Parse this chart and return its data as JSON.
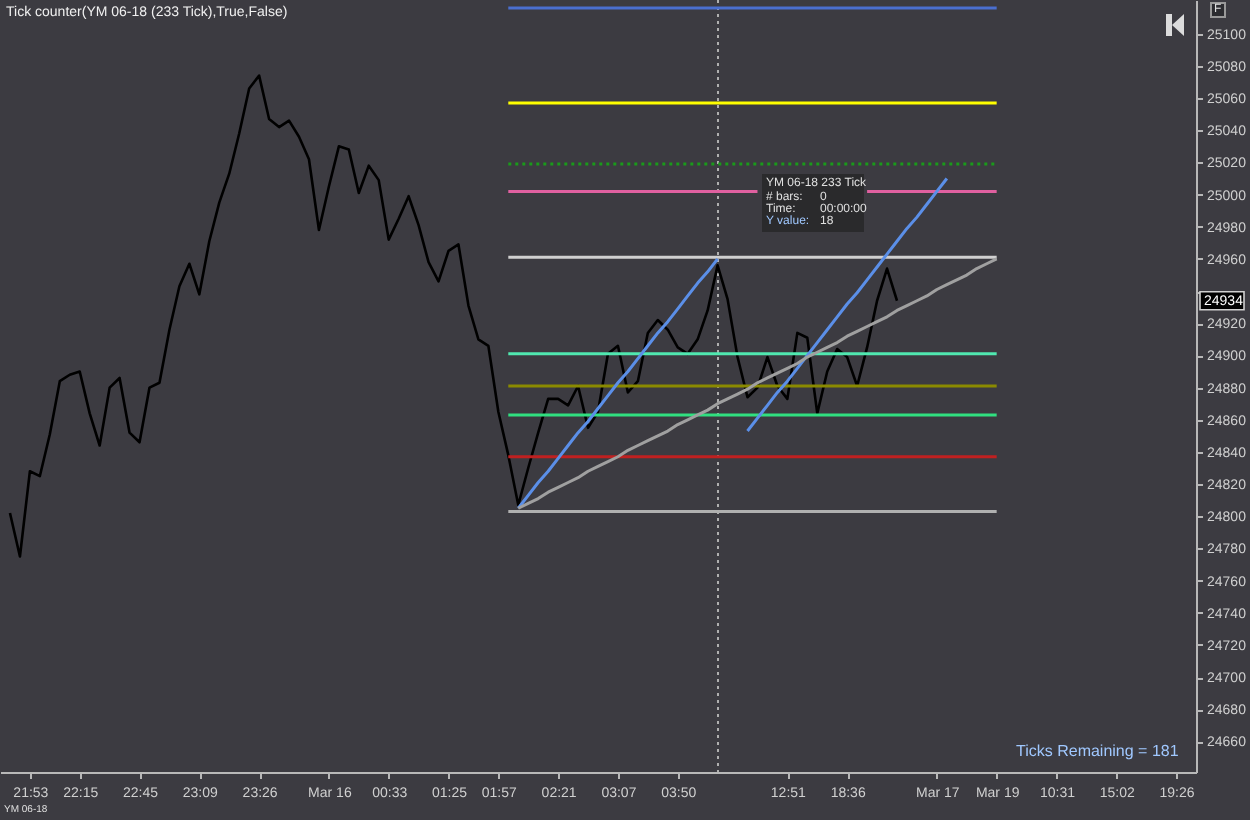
{
  "chart_data": {
    "type": "line",
    "title": "Tick counter(YM 06-18 (233 Tick),True,False)",
    "categories": [
      null,
      null,
      null,
      "21:53",
      null,
      null,
      null,
      null,
      "22:15",
      null,
      null,
      null,
      null,
      null,
      "22:45",
      null,
      null,
      null,
      null,
      null,
      "23:09",
      null,
      null,
      null,
      null,
      null,
      "23:26",
      null,
      null,
      null,
      null,
      null,
      null,
      "Mar 16",
      null,
      null,
      null,
      null,
      null,
      "00:33",
      null,
      null,
      null,
      null,
      null,
      "01:25",
      null,
      null,
      null,
      null,
      "01:57",
      null,
      null,
      null,
      null,
      null,
      "02:21",
      null,
      null,
      null,
      null,
      null,
      "03:07",
      null,
      null,
      null,
      null,
      null,
      "03:50",
      null,
      null,
      null,
      null,
      null,
      null,
      null,
      null,
      null,
      null,
      "12:51",
      null,
      null,
      null,
      null,
      null,
      "18:36",
      null,
      null,
      null,
      null,
      null,
      null,
      null,
      null,
      "Mar 17",
      null,
      null,
      null,
      null,
      null,
      "Mar 19",
      null,
      null,
      null,
      null,
      null,
      "10:31",
      null,
      null,
      null,
      null,
      null,
      "15:02",
      null,
      null,
      null,
      null,
      null,
      "19:26",
      null,
      null
    ],
    "ylim": [
      24641,
      25121
    ],
    "yticks": [
      24660,
      24680,
      24700,
      24720,
      24740,
      24760,
      24780,
      24800,
      24820,
      24840,
      24860,
      24880,
      24900,
      24920,
      {
        "value": 24940,
        "label": null
      },
      24960,
      24980,
      25000,
      25020,
      25040,
      25060,
      25080,
      25100
    ],
    "series": [
      {
        "color": "#000000",
        "values": [
          null,
          24802,
          24775,
          24828,
          24825,
          24851,
          24884,
          24888,
          24890,
          24864,
          24844,
          24880,
          24886,
          24852,
          24846,
          24880,
          24883,
          24916,
          24943,
          24957,
          24938,
          24971,
          24995,
          25013,
          25038,
          25066,
          25074,
          25047,
          25042,
          25046,
          25036,
          25022,
          24978,
          25005,
          25030,
          25028,
          25001,
          25018,
          25009,
          24972,
          24985,
          24999,
          24981,
          24958,
          24946,
          24965,
          24969,
          24931,
          24910,
          24906,
          24865,
          24838,
          24807,
          24830,
          24852,
          24873,
          24873,
          24869,
          24881,
          24855,
          24865,
          24901,
          24906,
          24877,
          24884,
          24914,
          24922,
          24916,
          24905,
          24901,
          24910,
          24928,
          24956,
          24935,
          24899,
          24874,
          24880,
          24899,
          24881,
          24873,
          24914,
          24911,
          24864,
          24890,
          24904,
          24899,
          24881,
          24905,
          24934,
          24954,
          24934,
          null,
          null,
          null,
          null,
          null,
          null,
          null,
          null,
          null,
          null,
          null,
          null,
          null,
          null,
          null,
          null,
          null,
          null,
          null,
          null,
          null,
          null,
          null,
          null,
          null,
          null,
          null,
          null,
          null,
          null
        ]
      },
      {
        "color": "#4a6fd0",
        "values": [
          null,
          null,
          null,
          null,
          null,
          null,
          null,
          null,
          null,
          null,
          null,
          null,
          null,
          null,
          null,
          null,
          null,
          null,
          null,
          null,
          null,
          null,
          null,
          null,
          null,
          null,
          null,
          null,
          null,
          null,
          null,
          null,
          null,
          null,
          null,
          null,
          null,
          null,
          null,
          null,
          null,
          null,
          null,
          null,
          null,
          null,
          null,
          null,
          null,
          null,
          null,
          25116,
          25116,
          25116,
          25116,
          25116,
          25116,
          25116,
          25116,
          25116,
          25116,
          25116,
          25116,
          25116,
          25116,
          25116,
          25116,
          25116,
          25116,
          25116,
          25116,
          25116,
          25116,
          25116,
          25116,
          25116,
          25116,
          25116,
          25116,
          25116,
          25116,
          25116,
          25116,
          25116,
          25116,
          25116,
          25116,
          25116,
          25116,
          25116,
          25116,
          25116,
          25116,
          25116,
          25116,
          25116,
          25116,
          25116,
          25116,
          25116,
          25116,
          null,
          null,
          null,
          null,
          null,
          null,
          null,
          null,
          null,
          null,
          null,
          null,
          null,
          null,
          null,
          null,
          null,
          null,
          null,
          null
        ]
      },
      {
        "color": "#ffff00",
        "values": [
          null,
          null,
          null,
          null,
          null,
          null,
          null,
          null,
          null,
          null,
          null,
          null,
          null,
          null,
          null,
          null,
          null,
          null,
          null,
          null,
          null,
          null,
          null,
          null,
          null,
          null,
          null,
          null,
          null,
          null,
          null,
          null,
          null,
          null,
          null,
          null,
          null,
          null,
          null,
          null,
          null,
          null,
          null,
          null,
          null,
          null,
          null,
          null,
          null,
          null,
          null,
          25057,
          25057,
          25057,
          25057,
          25057,
          25057,
          25057,
          25057,
          25057,
          25057,
          25057,
          25057,
          25057,
          25057,
          25057,
          25057,
          25057,
          25057,
          25057,
          25057,
          25057,
          25057,
          25057,
          25057,
          25057,
          25057,
          25057,
          25057,
          25057,
          25057,
          25057,
          25057,
          25057,
          25057,
          25057,
          25057,
          25057,
          25057,
          25057,
          25057,
          25057,
          25057,
          25057,
          25057,
          25057,
          25057,
          25057,
          25057,
          25057,
          25057,
          null,
          null,
          null,
          null,
          null,
          null,
          null,
          null,
          null,
          null,
          null,
          null,
          null,
          null,
          null,
          null,
          null,
          null,
          null,
          null
        ]
      },
      {
        "color": "#1a9a1a",
        "line_style": "dotted",
        "values": [
          null,
          null,
          null,
          null,
          null,
          null,
          null,
          null,
          null,
          null,
          null,
          null,
          null,
          null,
          null,
          null,
          null,
          null,
          null,
          null,
          null,
          null,
          null,
          null,
          null,
          null,
          null,
          null,
          null,
          null,
          null,
          null,
          null,
          null,
          null,
          null,
          null,
          null,
          null,
          null,
          null,
          null,
          null,
          null,
          null,
          null,
          null,
          null,
          null,
          null,
          null,
          25019,
          25019,
          25019,
          25019,
          25019,
          25019,
          25019,
          25019,
          25019,
          25019,
          25019,
          25019,
          25019,
          25019,
          25019,
          25019,
          25019,
          25019,
          25019,
          25019,
          25019,
          25019,
          25019,
          25019,
          25019,
          25019,
          25019,
          25019,
          25019,
          25019,
          25019,
          25019,
          25019,
          25019,
          25019,
          25019,
          25019,
          25019,
          25019,
          25019,
          25019,
          25019,
          25019,
          25019,
          25019,
          25019,
          25019,
          25019,
          25019,
          25019,
          null,
          null,
          null,
          null,
          null,
          null,
          null,
          null,
          null,
          null,
          null,
          null,
          null,
          null,
          null,
          null,
          null,
          null,
          null,
          null
        ]
      },
      {
        "color": "#e060a0",
        "values": [
          null,
          null,
          null,
          null,
          null,
          null,
          null,
          null,
          null,
          null,
          null,
          null,
          null,
          null,
          null,
          null,
          null,
          null,
          null,
          null,
          null,
          null,
          null,
          null,
          null,
          null,
          null,
          null,
          null,
          null,
          null,
          null,
          null,
          null,
          null,
          null,
          null,
          null,
          null,
          null,
          null,
          null,
          null,
          null,
          null,
          null,
          null,
          null,
          null,
          null,
          null,
          25002,
          25002,
          25002,
          25002,
          25002,
          25002,
          25002,
          25002,
          25002,
          25002,
          25002,
          25002,
          25002,
          25002,
          25002,
          25002,
          25002,
          25002,
          25002,
          25002,
          25002,
          25002,
          25002,
          25002,
          25002,
          25002,
          null,
          null,
          null,
          null,
          null,
          null,
          null,
          null,
          null,
          null,
          25002,
          25002,
          25002,
          25002,
          25002,
          25002,
          25002,
          25002,
          25002,
          25002,
          25002,
          25002,
          25002,
          25002,
          null,
          null,
          null,
          null,
          null,
          null,
          null,
          null,
          null,
          null,
          null,
          null,
          null,
          null,
          null,
          null,
          null,
          null,
          null,
          null
        ]
      },
      {
        "color": "#d0d0d0",
        "values": [
          null,
          null,
          null,
          null,
          null,
          null,
          null,
          null,
          null,
          null,
          null,
          null,
          null,
          null,
          null,
          null,
          null,
          null,
          null,
          null,
          null,
          null,
          null,
          null,
          null,
          null,
          null,
          null,
          null,
          null,
          null,
          null,
          null,
          null,
          null,
          null,
          null,
          null,
          null,
          null,
          null,
          null,
          null,
          null,
          null,
          null,
          null,
          null,
          null,
          null,
          null,
          24961,
          24961,
          24961,
          24961,
          24961,
          24961,
          24961,
          24961,
          24961,
          24961,
          24961,
          24961,
          24961,
          24961,
          24961,
          24961,
          24961,
          24961,
          24961,
          24961,
          24961,
          24961,
          24961,
          24961,
          24961,
          24961,
          24961,
          24961,
          24961,
          24961,
          24961,
          24961,
          24961,
          24961,
          24961,
          24961,
          24961,
          24961,
          24961,
          24961,
          24961,
          24961,
          24961,
          24961,
          24961,
          24961,
          24961,
          24961,
          24961,
          24961,
          null,
          null,
          null,
          null,
          null,
          null,
          null,
          null,
          null,
          null,
          null,
          null,
          null,
          null,
          null,
          null,
          null,
          null,
          null,
          null
        ]
      },
      {
        "color": "#50e8b0",
        "values": [
          null,
          null,
          null,
          null,
          null,
          null,
          null,
          null,
          null,
          null,
          null,
          null,
          null,
          null,
          null,
          null,
          null,
          null,
          null,
          null,
          null,
          null,
          null,
          null,
          null,
          null,
          null,
          null,
          null,
          null,
          null,
          null,
          null,
          null,
          null,
          null,
          null,
          null,
          null,
          null,
          null,
          null,
          null,
          null,
          null,
          null,
          null,
          null,
          null,
          null,
          null,
          24901,
          24901,
          24901,
          24901,
          24901,
          24901,
          24901,
          24901,
          24901,
          24901,
          24901,
          24901,
          24901,
          24901,
          24901,
          24901,
          24901,
          24901,
          24901,
          24901,
          24901,
          24901,
          24901,
          24901,
          24901,
          24901,
          24901,
          24901,
          24901,
          24901,
          24901,
          24901,
          24901,
          24901,
          24901,
          24901,
          24901,
          24901,
          24901,
          24901,
          24901,
          24901,
          24901,
          24901,
          24901,
          24901,
          24901,
          24901,
          24901,
          24901,
          null,
          null,
          null,
          null,
          null,
          null,
          null,
          null,
          null,
          null,
          null,
          null,
          null,
          null,
          null,
          null,
          null,
          null,
          null,
          null
        ]
      },
      {
        "color": "#8a8a00",
        "values": [
          null,
          null,
          null,
          null,
          null,
          null,
          null,
          null,
          null,
          null,
          null,
          null,
          null,
          null,
          null,
          null,
          null,
          null,
          null,
          null,
          null,
          null,
          null,
          null,
          null,
          null,
          null,
          null,
          null,
          null,
          null,
          null,
          null,
          null,
          null,
          null,
          null,
          null,
          null,
          null,
          null,
          null,
          null,
          null,
          null,
          null,
          null,
          null,
          null,
          null,
          null,
          24881,
          24881,
          24881,
          24881,
          24881,
          24881,
          24881,
          24881,
          24881,
          24881,
          24881,
          24881,
          24881,
          24881,
          24881,
          24881,
          24881,
          24881,
          24881,
          24881,
          24881,
          24881,
          24881,
          24881,
          24881,
          24881,
          24881,
          24881,
          24881,
          24881,
          24881,
          24881,
          24881,
          24881,
          24881,
          24881,
          24881,
          24881,
          24881,
          24881,
          24881,
          24881,
          24881,
          24881,
          24881,
          24881,
          24881,
          24881,
          24881,
          24881,
          null,
          null,
          null,
          null,
          null,
          null,
          null,
          null,
          null,
          null,
          null,
          null,
          null,
          null,
          null,
          null,
          null,
          null,
          null,
          null
        ]
      },
      {
        "color": "#30e080",
        "values": [
          null,
          null,
          null,
          null,
          null,
          null,
          null,
          null,
          null,
          null,
          null,
          null,
          null,
          null,
          null,
          null,
          null,
          null,
          null,
          null,
          null,
          null,
          null,
          null,
          null,
          null,
          null,
          null,
          null,
          null,
          null,
          null,
          null,
          null,
          null,
          null,
          null,
          null,
          null,
          null,
          null,
          null,
          null,
          null,
          null,
          null,
          null,
          null,
          null,
          null,
          null,
          24863,
          24863,
          24863,
          24863,
          24863,
          24863,
          24863,
          24863,
          24863,
          24863,
          24863,
          24863,
          24863,
          24863,
          24863,
          24863,
          24863,
          24863,
          24863,
          24863,
          24863,
          24863,
          24863,
          24863,
          24863,
          24863,
          24863,
          24863,
          24863,
          24863,
          24863,
          24863,
          24863,
          24863,
          24863,
          24863,
          24863,
          24863,
          24863,
          24863,
          24863,
          24863,
          24863,
          24863,
          24863,
          24863,
          24863,
          24863,
          24863,
          24863,
          null,
          null,
          null,
          null,
          null,
          null,
          null,
          null,
          null,
          null,
          null,
          null,
          null,
          null,
          null,
          null,
          null,
          null,
          null,
          null
        ]
      },
      {
        "color": "#c02020",
        "values": [
          null,
          null,
          null,
          null,
          null,
          null,
          null,
          null,
          null,
          null,
          null,
          null,
          null,
          null,
          null,
          null,
          null,
          null,
          null,
          null,
          null,
          null,
          null,
          null,
          null,
          null,
          null,
          null,
          null,
          null,
          null,
          null,
          null,
          null,
          null,
          null,
          null,
          null,
          null,
          null,
          null,
          null,
          null,
          null,
          null,
          null,
          null,
          null,
          null,
          null,
          null,
          24837,
          24837,
          24837,
          24837,
          24837,
          24837,
          24837,
          24837,
          24837,
          24837,
          24837,
          24837,
          24837,
          24837,
          24837,
          24837,
          24837,
          24837,
          24837,
          24837,
          24837,
          24837,
          24837,
          24837,
          24837,
          24837,
          24837,
          24837,
          24837,
          24837,
          24837,
          24837,
          24837,
          24837,
          24837,
          24837,
          24837,
          24837,
          24837,
          24837,
          24837,
          24837,
          24837,
          24837,
          24837,
          24837,
          24837,
          24837,
          24837,
          24837,
          null,
          null,
          null,
          null,
          null,
          null,
          null,
          null,
          null,
          null,
          null,
          null,
          null,
          null,
          null,
          null,
          null,
          null,
          null,
          null
        ]
      },
      {
        "color": "#b0b0b0",
        "values": [
          null,
          null,
          null,
          null,
          null,
          null,
          null,
          null,
          null,
          null,
          null,
          null,
          null,
          null,
          null,
          null,
          null,
          null,
          null,
          null,
          null,
          null,
          null,
          null,
          null,
          null,
          null,
          null,
          null,
          null,
          null,
          null,
          null,
          null,
          null,
          null,
          null,
          null,
          null,
          null,
          null,
          null,
          null,
          null,
          null,
          null,
          null,
          null,
          null,
          null,
          null,
          24803,
          24803,
          24803,
          24803,
          24803,
          24803,
          24803,
          24803,
          24803,
          24803,
          24803,
          24803,
          24803,
          24803,
          24803,
          24803,
          24803,
          24803,
          24803,
          24803,
          24803,
          24803,
          24803,
          24803,
          24803,
          24803,
          24803,
          24803,
          24803,
          24803,
          24803,
          24803,
          24803,
          24803,
          24803,
          24803,
          24803,
          24803,
          24803,
          24803,
          24803,
          24803,
          24803,
          24803,
          24803,
          24803,
          24803,
          24803,
          24803,
          24803,
          null,
          null,
          null,
          null,
          null,
          null,
          null,
          null,
          null,
          null,
          null,
          null,
          null,
          null,
          null,
          null,
          null,
          null,
          null,
          null
        ]
      },
      {
        "color": "#5b8fe8",
        "values": [
          null,
          null,
          null,
          null,
          null,
          null,
          null,
          null,
          null,
          null,
          null,
          null,
          null,
          null,
          null,
          null,
          null,
          null,
          null,
          null,
          null,
          null,
          null,
          null,
          null,
          null,
          null,
          null,
          null,
          null,
          null,
          null,
          null,
          null,
          null,
          null,
          null,
          null,
          null,
          null,
          null,
          null,
          null,
          null,
          null,
          null,
          null,
          null,
          null,
          null,
          null,
          null,
          24805,
          24813,
          24821,
          24828,
          24836,
          24844,
          24852,
          24859,
          24867,
          24875,
          24883,
          24890,
          24898,
          24906,
          24914,
          24921,
          24929,
          24937,
          24945,
          24952,
          24960,
          null,
          null,
          null,
          null,
          null,
          null,
          null,
          null,
          null,
          null,
          null,
          null,
          null,
          null,
          null,
          null,
          null,
          null,
          null,
          null,
          null,
          null,
          null,
          null,
          null,
          null,
          null,
          null,
          null,
          null,
          null,
          null,
          null,
          null,
          null,
          null,
          null,
          null,
          null,
          null,
          null,
          null,
          null,
          null,
          null,
          null,
          null,
          null
        ]
      },
      {
        "color": "#5b8fe8",
        "values": [
          null,
          null,
          null,
          null,
          null,
          null,
          null,
          null,
          null,
          null,
          null,
          null,
          null,
          null,
          null,
          null,
          null,
          null,
          null,
          null,
          null,
          null,
          null,
          null,
          null,
          null,
          null,
          null,
          null,
          null,
          null,
          null,
          null,
          null,
          null,
          null,
          null,
          null,
          null,
          null,
          null,
          null,
          null,
          null,
          null,
          null,
          null,
          null,
          null,
          null,
          null,
          null,
          null,
          null,
          null,
          null,
          null,
          null,
          null,
          null,
          null,
          null,
          null,
          null,
          null,
          null,
          null,
          null,
          null,
          null,
          null,
          null,
          null,
          null,
          null,
          24853,
          24861,
          24869,
          24877,
          24884,
          24892,
          24900,
          24908,
          24916,
          24924,
          24932,
          24939,
          24947,
          24955,
          24963,
          24971,
          24979,
          24986,
          24994,
          25002,
          25010,
          null,
          null,
          null,
          null,
          null,
          null,
          null,
          null,
          null,
          null,
          null,
          null,
          null,
          null,
          null,
          null,
          null,
          null,
          null,
          null,
          null,
          null,
          null,
          null,
          null
        ]
      },
      {
        "color": "#a0a0a0",
        "values": [
          null,
          null,
          null,
          null,
          null,
          null,
          null,
          null,
          null,
          null,
          null,
          null,
          null,
          null,
          null,
          null,
          null,
          null,
          null,
          null,
          null,
          null,
          null,
          null,
          null,
          null,
          null,
          null,
          null,
          null,
          null,
          null,
          null,
          null,
          null,
          null,
          null,
          null,
          null,
          null,
          null,
          null,
          null,
          null,
          null,
          null,
          null,
          null,
          null,
          null,
          null,
          null,
          24805,
          24808,
          24811,
          24815,
          24818,
          24821,
          24824,
          24828,
          24831,
          24834,
          24837,
          24841,
          24844,
          24847,
          24850,
          24853,
          24857,
          24860,
          24863,
          24866,
          24870,
          24873,
          24876,
          24879,
          24883,
          24886,
          24889,
          24892,
          24895,
          24899,
          24902,
          24905,
          24908,
          24912,
          24915,
          24918,
          24921,
          24924,
          24928,
          24931,
          24934,
          24937,
          24941,
          24944,
          24947,
          24950,
          24954,
          24957,
          24960,
          null,
          null,
          null,
          null,
          null,
          null,
          null,
          null,
          null,
          null,
          null,
          null,
          null,
          null,
          null,
          null,
          null,
          null,
          null,
          null
        ]
      }
    ],
    "annotations": [
      "YM 06-18 233 Tick",
      "# bars:",
      "0",
      "Time:",
      "00:00:00",
      "Y value:",
      "18",
      "Ticks Remaining = 181",
      "YM 06-18",
      {
        "text": "24934",
        "y": 24934
      },
      "F"
    ]
  }
}
